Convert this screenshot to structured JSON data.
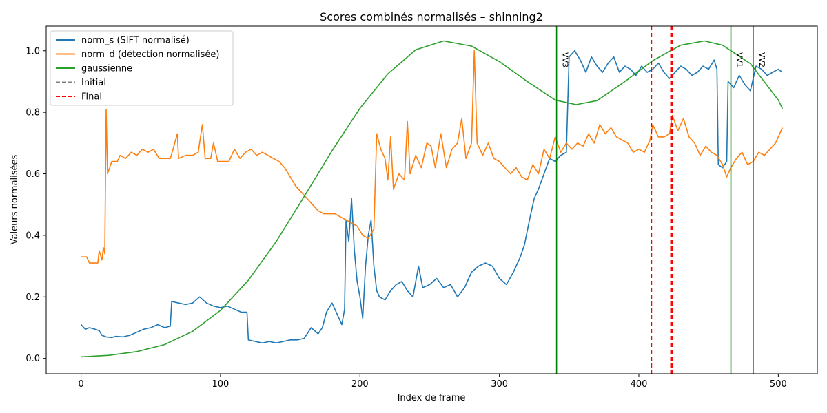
{
  "chart_data": {
    "type": "line",
    "title": "Scores combinés normalisés – shinning2",
    "xlabel": "Index de frame",
    "ylabel": "Valeurs normalisées",
    "xlim": [
      -25,
      528
    ],
    "ylim": [
      -0.05,
      1.08
    ],
    "x_ticks": [
      0,
      100,
      200,
      300,
      400,
      500
    ],
    "y_ticks": [
      0.0,
      0.2,
      0.4,
      0.6,
      0.8,
      1.0
    ],
    "x_tick_labels": [
      "0",
      "100",
      "200",
      "300",
      "400",
      "500"
    ],
    "y_tick_labels": [
      "0.0",
      "0.2",
      "0.4",
      "0.6",
      "0.8",
      "1.0"
    ],
    "grid": false,
    "legend_position": "top-left",
    "series": [
      {
        "name": "norm_s (SIFT normalisé)",
        "color": "#1f77b4",
        "style": "solid",
        "points": [
          [
            0,
            0.11
          ],
          [
            3,
            0.095
          ],
          [
            6,
            0.1
          ],
          [
            10,
            0.095
          ],
          [
            13,
            0.09
          ],
          [
            15,
            0.075
          ],
          [
            18,
            0.07
          ],
          [
            22,
            0.068
          ],
          [
            25,
            0.072
          ],
          [
            30,
            0.07
          ],
          [
            35,
            0.075
          ],
          [
            40,
            0.085
          ],
          [
            45,
            0.095
          ],
          [
            50,
            0.1
          ],
          [
            55,
            0.11
          ],
          [
            60,
            0.1
          ],
          [
            64,
            0.105
          ],
          [
            65,
            0.185
          ],
          [
            70,
            0.18
          ],
          [
            75,
            0.175
          ],
          [
            80,
            0.18
          ],
          [
            85,
            0.2
          ],
          [
            90,
            0.18
          ],
          [
            95,
            0.17
          ],
          [
            100,
            0.165
          ],
          [
            105,
            0.17
          ],
          [
            110,
            0.16
          ],
          [
            115,
            0.15
          ],
          [
            119,
            0.15
          ],
          [
            120,
            0.06
          ],
          [
            125,
            0.055
          ],
          [
            130,
            0.05
          ],
          [
            135,
            0.055
          ],
          [
            140,
            0.05
          ],
          [
            145,
            0.055
          ],
          [
            150,
            0.06
          ],
          [
            155,
            0.06
          ],
          [
            160,
            0.065
          ],
          [
            165,
            0.1
          ],
          [
            170,
            0.08
          ],
          [
            173,
            0.1
          ],
          [
            176,
            0.15
          ],
          [
            180,
            0.18
          ],
          [
            184,
            0.14
          ],
          [
            187,
            0.11
          ],
          [
            189,
            0.16
          ],
          [
            190,
            0.45
          ],
          [
            192,
            0.38
          ],
          [
            194,
            0.52
          ],
          [
            196,
            0.35
          ],
          [
            198,
            0.25
          ],
          [
            200,
            0.2
          ],
          [
            202,
            0.13
          ],
          [
            204,
            0.3
          ],
          [
            206,
            0.4
          ],
          [
            208,
            0.45
          ],
          [
            210,
            0.3
          ],
          [
            212,
            0.22
          ],
          [
            214,
            0.2
          ],
          [
            218,
            0.19
          ],
          [
            222,
            0.22
          ],
          [
            226,
            0.24
          ],
          [
            230,
            0.25
          ],
          [
            234,
            0.22
          ],
          [
            238,
            0.2
          ],
          [
            242,
            0.3
          ],
          [
            245,
            0.23
          ],
          [
            250,
            0.24
          ],
          [
            255,
            0.26
          ],
          [
            260,
            0.23
          ],
          [
            265,
            0.24
          ],
          [
            270,
            0.2
          ],
          [
            275,
            0.23
          ],
          [
            280,
            0.28
          ],
          [
            285,
            0.3
          ],
          [
            290,
            0.31
          ],
          [
            295,
            0.3
          ],
          [
            300,
            0.26
          ],
          [
            305,
            0.24
          ],
          [
            310,
            0.28
          ],
          [
            315,
            0.33
          ],
          [
            318,
            0.37
          ],
          [
            322,
            0.46
          ],
          [
            325,
            0.52
          ],
          [
            328,
            0.55
          ],
          [
            332,
            0.6
          ],
          [
            336,
            0.65
          ],
          [
            340,
            0.64
          ],
          [
            344,
            0.66
          ],
          [
            348,
            0.67
          ],
          [
            350,
            0.98
          ],
          [
            354,
            1.0
          ],
          [
            358,
            0.97
          ],
          [
            362,
            0.93
          ],
          [
            366,
            0.98
          ],
          [
            370,
            0.95
          ],
          [
            374,
            0.93
          ],
          [
            378,
            0.96
          ],
          [
            382,
            0.98
          ],
          [
            386,
            0.93
          ],
          [
            390,
            0.95
          ],
          [
            394,
            0.94
          ],
          [
            398,
            0.92
          ],
          [
            402,
            0.95
          ],
          [
            406,
            0.93
          ],
          [
            410,
            0.94
          ],
          [
            414,
            0.96
          ],
          [
            418,
            0.93
          ],
          [
            422,
            0.91
          ],
          [
            426,
            0.93
          ],
          [
            430,
            0.95
          ],
          [
            434,
            0.94
          ],
          [
            438,
            0.92
          ],
          [
            442,
            0.93
          ],
          [
            446,
            0.95
          ],
          [
            450,
            0.94
          ],
          [
            454,
            0.97
          ],
          [
            456,
            0.94
          ],
          [
            457,
            0.63
          ],
          [
            460,
            0.62
          ],
          [
            463,
            0.64
          ],
          [
            464,
            0.9
          ],
          [
            468,
            0.88
          ],
          [
            472,
            0.92
          ],
          [
            476,
            0.89
          ],
          [
            480,
            0.87
          ],
          [
            484,
            0.95
          ],
          [
            488,
            0.94
          ],
          [
            492,
            0.92
          ],
          [
            496,
            0.93
          ],
          [
            500,
            0.94
          ],
          [
            503,
            0.93
          ]
        ]
      },
      {
        "name": "norm_d (détection normalisée)",
        "color": "#ff7f0e",
        "style": "solid",
        "points": [
          [
            0,
            0.33
          ],
          [
            4,
            0.33
          ],
          [
            6,
            0.31
          ],
          [
            10,
            0.31
          ],
          [
            12,
            0.31
          ],
          [
            13,
            0.35
          ],
          [
            15,
            0.32
          ],
          [
            16,
            0.36
          ],
          [
            17,
            0.34
          ],
          [
            18,
            0.81
          ],
          [
            19,
            0.6
          ],
          [
            22,
            0.64
          ],
          [
            26,
            0.64
          ],
          [
            28,
            0.66
          ],
          [
            32,
            0.65
          ],
          [
            36,
            0.67
          ],
          [
            40,
            0.66
          ],
          [
            44,
            0.68
          ],
          [
            48,
            0.67
          ],
          [
            52,
            0.68
          ],
          [
            56,
            0.65
          ],
          [
            60,
            0.65
          ],
          [
            64,
            0.65
          ],
          [
            66,
            0.68
          ],
          [
            69,
            0.73
          ],
          [
            70,
            0.65
          ],
          [
            75,
            0.66
          ],
          [
            80,
            0.66
          ],
          [
            84,
            0.67
          ],
          [
            87,
            0.76
          ],
          [
            89,
            0.65
          ],
          [
            93,
            0.65
          ],
          [
            95,
            0.7
          ],
          [
            98,
            0.64
          ],
          [
            102,
            0.64
          ],
          [
            106,
            0.64
          ],
          [
            110,
            0.68
          ],
          [
            114,
            0.65
          ],
          [
            118,
            0.67
          ],
          [
            122,
            0.68
          ],
          [
            126,
            0.66
          ],
          [
            130,
            0.67
          ],
          [
            134,
            0.66
          ],
          [
            138,
            0.65
          ],
          [
            142,
            0.64
          ],
          [
            146,
            0.62
          ],
          [
            150,
            0.59
          ],
          [
            154,
            0.56
          ],
          [
            158,
            0.54
          ],
          [
            162,
            0.52
          ],
          [
            166,
            0.5
          ],
          [
            170,
            0.48
          ],
          [
            174,
            0.47
          ],
          [
            178,
            0.47
          ],
          [
            182,
            0.47
          ],
          [
            186,
            0.46
          ],
          [
            190,
            0.45
          ],
          [
            194,
            0.44
          ],
          [
            198,
            0.43
          ],
          [
            202,
            0.4
          ],
          [
            206,
            0.39
          ],
          [
            210,
            0.42
          ],
          [
            212,
            0.73
          ],
          [
            215,
            0.68
          ],
          [
            218,
            0.65
          ],
          [
            220,
            0.58
          ],
          [
            222,
            0.72
          ],
          [
            224,
            0.55
          ],
          [
            228,
            0.6
          ],
          [
            232,
            0.58
          ],
          [
            234,
            0.77
          ],
          [
            236,
            0.6
          ],
          [
            240,
            0.66
          ],
          [
            244,
            0.62
          ],
          [
            248,
            0.7
          ],
          [
            251,
            0.69
          ],
          [
            254,
            0.62
          ],
          [
            258,
            0.73
          ],
          [
            262,
            0.62
          ],
          [
            266,
            0.68
          ],
          [
            270,
            0.7
          ],
          [
            273,
            0.78
          ],
          [
            276,
            0.65
          ],
          [
            280,
            0.7
          ],
          [
            282,
            1.0
          ],
          [
            284,
            0.7
          ],
          [
            288,
            0.66
          ],
          [
            292,
            0.7
          ],
          [
            296,
            0.65
          ],
          [
            300,
            0.64
          ],
          [
            304,
            0.62
          ],
          [
            308,
            0.6
          ],
          [
            312,
            0.62
          ],
          [
            316,
            0.59
          ],
          [
            320,
            0.58
          ],
          [
            324,
            0.63
          ],
          [
            328,
            0.6
          ],
          [
            332,
            0.68
          ],
          [
            336,
            0.65
          ],
          [
            340,
            0.72
          ],
          [
            344,
            0.67
          ],
          [
            348,
            0.7
          ],
          [
            352,
            0.68
          ],
          [
            356,
            0.7
          ],
          [
            360,
            0.69
          ],
          [
            364,
            0.73
          ],
          [
            368,
            0.7
          ],
          [
            372,
            0.76
          ],
          [
            376,
            0.73
          ],
          [
            380,
            0.75
          ],
          [
            384,
            0.72
          ],
          [
            388,
            0.71
          ],
          [
            392,
            0.7
          ],
          [
            396,
            0.67
          ],
          [
            400,
            0.68
          ],
          [
            404,
            0.67
          ],
          [
            408,
            0.71
          ],
          [
            410,
            0.76
          ],
          [
            414,
            0.72
          ],
          [
            418,
            0.72
          ],
          [
            422,
            0.73
          ],
          [
            424,
            0.79
          ],
          [
            428,
            0.74
          ],
          [
            432,
            0.78
          ],
          [
            436,
            0.72
          ],
          [
            440,
            0.7
          ],
          [
            444,
            0.66
          ],
          [
            448,
            0.69
          ],
          [
            452,
            0.67
          ],
          [
            456,
            0.66
          ],
          [
            460,
            0.63
          ],
          [
            463,
            0.59
          ],
          [
            466,
            0.62
          ],
          [
            470,
            0.65
          ],
          [
            474,
            0.67
          ],
          [
            478,
            0.63
          ],
          [
            482,
            0.64
          ],
          [
            486,
            0.67
          ],
          [
            490,
            0.66
          ],
          [
            494,
            0.68
          ],
          [
            498,
            0.7
          ],
          [
            503,
            0.75
          ]
        ]
      },
      {
        "name": "gaussienne",
        "color": "#2ca02c",
        "style": "solid",
        "points": [
          [
            0,
            0.005
          ],
          [
            20,
            0.01
          ],
          [
            40,
            0.022
          ],
          [
            60,
            0.045
          ],
          [
            80,
            0.088
          ],
          [
            100,
            0.156
          ],
          [
            120,
            0.254
          ],
          [
            140,
            0.38
          ],
          [
            160,
            0.526
          ],
          [
            180,
            0.675
          ],
          [
            200,
            0.813
          ],
          [
            220,
            0.925
          ],
          [
            240,
            1.003
          ],
          [
            260,
            1.032
          ],
          [
            280,
            1.015
          ],
          [
            300,
            0.965
          ],
          [
            320,
            0.9
          ],
          [
            340,
            0.84
          ],
          [
            355,
            0.825
          ],
          [
            370,
            0.838
          ],
          [
            390,
            0.9
          ],
          [
            410,
            0.968
          ],
          [
            430,
            1.018
          ],
          [
            447,
            1.032
          ],
          [
            460,
            1.018
          ],
          [
            480,
            0.958
          ],
          [
            500,
            0.84
          ],
          [
            503,
            0.812
          ]
        ]
      },
      {
        "name": "Initial",
        "color": "#808080",
        "style": "dashed",
        "points": []
      },
      {
        "name": "Final",
        "color": "#ff0000",
        "style": "dashed",
        "points": []
      }
    ],
    "vertical_lines": [
      {
        "x": 341,
        "color": "#008000",
        "style": "solid",
        "label": "VV3"
      },
      {
        "x": 409,
        "color": "#ff0000",
        "style": "dashed",
        "label": ""
      },
      {
        "x": 423,
        "color": "#ff0000",
        "style": "dashed",
        "label": ""
      },
      {
        "x": 466,
        "color": "#008000",
        "style": "solid",
        "label": "VV1"
      },
      {
        "x": 482,
        "color": "#008000",
        "style": "solid",
        "label": "VV2"
      }
    ]
  }
}
